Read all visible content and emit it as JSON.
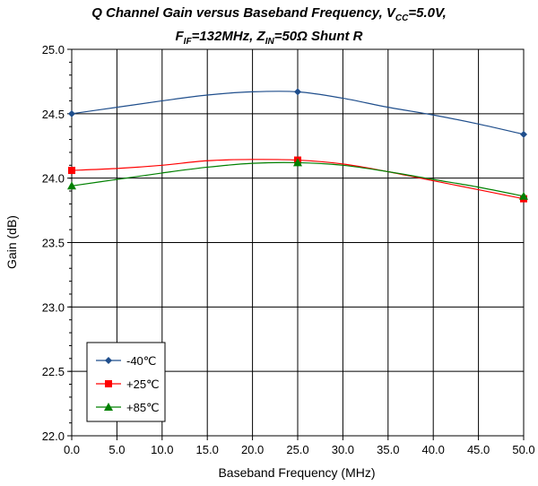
{
  "chart_data": {
    "type": "line",
    "title_line1": {
      "main": "Q Channel Gain versus Baseband Frequency, V",
      "sub": "CC",
      "tail": "=5.0V,"
    },
    "title_line2": {
      "a": "F",
      "a_sub": "IF",
      "b": "=132MHz, Z",
      "b_sub": "IN",
      "c": "=50Ω Shunt R"
    },
    "xlabel": "Baseband Frequency (MHz)",
    "ylabel": "Gain (dB)",
    "xlim": [
      0,
      50
    ],
    "ylim": [
      22.0,
      25.0
    ],
    "xticks": [
      "0.0",
      "5.0",
      "10.0",
      "15.0",
      "20.0",
      "25.0",
      "30.0",
      "35.0",
      "40.0",
      "45.0",
      "50.0"
    ],
    "yticks": [
      "22.0",
      "22.5",
      "23.0",
      "23.5",
      "24.0",
      "24.5",
      "25.0"
    ],
    "grid": true,
    "legend_position": "bottom-left",
    "series": [
      {
        "name": "-40℃",
        "color": "#1f4e8c",
        "marker": "diamond",
        "x": [
          0,
          25,
          50
        ],
        "values": [
          24.5,
          24.67,
          24.34
        ],
        "curve": [
          [
            0,
            24.5
          ],
          [
            5,
            24.55
          ],
          [
            10,
            24.6
          ],
          [
            15,
            24.645
          ],
          [
            20,
            24.67
          ],
          [
            25,
            24.67
          ],
          [
            30,
            24.62
          ],
          [
            35,
            24.55
          ],
          [
            40,
            24.49
          ],
          [
            45,
            24.42
          ],
          [
            50,
            24.34
          ]
        ]
      },
      {
        "name": "+25℃",
        "color": "#ff0000",
        "marker": "square",
        "x": [
          0,
          25,
          50
        ],
        "values": [
          24.06,
          24.14,
          23.84
        ],
        "curve": [
          [
            0,
            24.06
          ],
          [
            5,
            24.075
          ],
          [
            10,
            24.1
          ],
          [
            15,
            24.135
          ],
          [
            20,
            24.145
          ],
          [
            25,
            24.14
          ],
          [
            30,
            24.11
          ],
          [
            35,
            24.05
          ],
          [
            40,
            23.98
          ],
          [
            45,
            23.91
          ],
          [
            50,
            23.84
          ]
        ]
      },
      {
        "name": "+85℃",
        "color": "#008000",
        "marker": "triangle",
        "x": [
          0,
          25,
          50
        ],
        "values": [
          23.94,
          24.12,
          23.86
        ],
        "curve": [
          [
            0,
            23.94
          ],
          [
            5,
            23.99
          ],
          [
            10,
            24.04
          ],
          [
            15,
            24.085
          ],
          [
            20,
            24.115
          ],
          [
            25,
            24.12
          ],
          [
            30,
            24.1
          ],
          [
            35,
            24.05
          ],
          [
            40,
            23.99
          ],
          [
            45,
            23.93
          ],
          [
            50,
            23.86
          ]
        ]
      }
    ]
  }
}
